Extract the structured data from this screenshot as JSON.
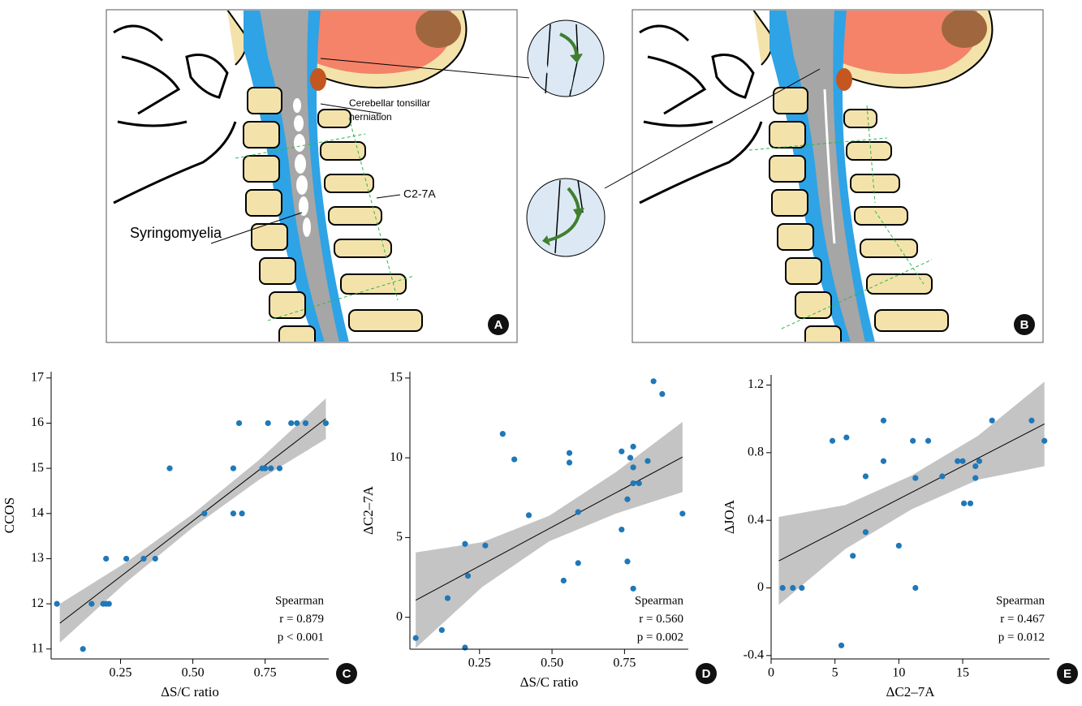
{
  "illustrations": {
    "panel_a": {
      "label": "A",
      "herniation": [
        "Cerebellar tonsillar",
        "herniation"
      ],
      "angle": "C2-7A",
      "syrinx": "Syringomyelia"
    },
    "panel_b": {
      "label": "B"
    }
  },
  "chart_data": [
    {
      "type": "scatter",
      "panel": "C",
      "x_label": "ΔS/C ratio",
      "y_label": "CCOS",
      "xlim": [
        0.01,
        0.97
      ],
      "ylim": [
        10.78,
        17.14
      ],
      "xticks": [
        0.25,
        {
          "value": 0.5,
          "label": "0.50"
        },
        0.75
      ],
      "yticks": [
        11,
        12,
        13,
        14,
        15,
        16,
        17
      ],
      "color": "#1f78b8",
      "band_color": "#c4c4c4",
      "x": [
        0.03,
        0.12,
        0.15,
        0.19,
        0.2,
        0.21,
        0.2,
        0.27,
        0.33,
        0.37,
        0.42,
        0.54,
        0.64,
        0.64,
        0.66,
        0.67,
        0.76,
        0.74,
        0.75,
        0.77,
        0.8,
        0.84,
        0.86,
        0.89,
        0.96
      ],
      "y": [
        12,
        11,
        12,
        12,
        12,
        12,
        13,
        13,
        13,
        13,
        15,
        14,
        15,
        14,
        16,
        14,
        16,
        15,
        15,
        15,
        15,
        16,
        16,
        16,
        16
      ],
      "fit": {
        "x": [
          0.04,
          0.96
        ],
        "y": [
          11.57,
          16.1
        ]
      },
      "band": {
        "x": [
          0.04,
          0.27,
          0.5,
          0.73,
          0.96
        ],
        "lower": [
          11.14,
          12.48,
          13.69,
          14.75,
          15.65
        ],
        "upper": [
          12.0,
          12.92,
          13.99,
          15.19,
          16.55
        ]
      },
      "annotations": [
        "Spearman",
        "r = 0.879",
        "p < 0.001"
      ]
    },
    {
      "type": "scatter",
      "panel": "D",
      "x_label": "ΔS/C ratio",
      "y_label": "ΔC2–7A",
      "xlim": [
        0.01,
        0.97
      ],
      "ylim": [
        -2.0,
        15.4
      ],
      "xticks": [
        0.25,
        {
          "value": 0.5,
          "label": "0.50"
        },
        0.75
      ],
      "yticks": [
        0,
        5,
        10,
        15
      ],
      "color": "#1f78b8",
      "band_color": "#c4c4c4",
      "x": [
        0.03,
        0.12,
        0.14,
        0.2,
        0.2,
        0.21,
        0.27,
        0.33,
        0.37,
        0.42,
        0.54,
        0.56,
        0.56,
        0.59,
        0.59,
        0.74,
        0.77,
        0.78,
        0.76,
        0.78,
        0.78,
        0.8,
        0.78,
        0.76,
        0.74,
        0.83,
        0.85,
        0.88,
        0.95
      ],
      "y": [
        -1.3,
        -0.8,
        1.2,
        -1.9,
        4.6,
        2.6,
        4.5,
        11.5,
        9.9,
        6.4,
        2.3,
        10.3,
        9.7,
        6.6,
        3.4,
        10.4,
        10.0,
        10.7,
        7.4,
        8.4,
        9.4,
        8.4,
        1.8,
        3.5,
        5.5,
        9.8,
        14.8,
        14.0,
        6.5
      ],
      "fit": {
        "x": [
          0.03,
          0.95
        ],
        "y": [
          1.07,
          10.05
        ]
      },
      "band": {
        "x": [
          0.03,
          0.26,
          0.49,
          0.72,
          0.95
        ],
        "lower": [
          -1.93,
          1.91,
          4.76,
          6.5,
          7.85
        ],
        "upper": [
          4.07,
          4.71,
          6.36,
          9.1,
          12.25
        ]
      },
      "annotations": [
        "Spearman",
        "r = 0.560",
        "p = 0.002"
      ]
    },
    {
      "type": "scatter",
      "panel": "E",
      "x_label": "ΔC2–7A",
      "y_label": "ΔJOA",
      "xlim": [
        0,
        21.8
      ],
      "ylim": [
        -0.42,
        1.26
      ],
      "xticks": [
        0,
        5,
        10,
        15
      ],
      "yticks": [
        -0.4,
        0,
        0.4,
        0.8,
        1.2
      ],
      "color": "#1f78b8",
      "band_color": "#c4c4c4",
      "x": [
        0.9,
        1.7,
        2.4,
        4.8,
        5.9,
        5.5,
        6.4,
        7.4,
        7.4,
        8.8,
        8.8,
        10.0,
        11.1,
        11.3,
        11.3,
        12.3,
        13.4,
        14.6,
        15.0,
        15.1,
        15.6,
        16.0,
        16.0,
        16.3,
        17.3,
        20.4,
        21.4
      ],
      "y": [
        0,
        0,
        0,
        0.87,
        0.89,
        -0.34,
        0.19,
        0.66,
        0.33,
        0.99,
        0.75,
        0.25,
        0.87,
        0.65,
        0,
        0.87,
        0.66,
        0.75,
        0.75,
        0.5,
        0.5,
        0.65,
        0.72,
        0.75,
        0.99,
        0.99,
        0.87
      ],
      "fit": {
        "x": [
          0.6,
          21.4
        ],
        "y": [
          0.16,
          0.97
        ]
      },
      "band": {
        "x": [
          0.6,
          5.8,
          11,
          16.2,
          21.4
        ],
        "lower": [
          -0.1,
          0.23,
          0.465,
          0.64,
          0.72
        ],
        "upper": [
          0.42,
          0.49,
          0.665,
          0.9,
          1.22
        ]
      },
      "annotations": [
        "Spearman",
        "r = 0.467",
        "p = 0.012"
      ]
    }
  ]
}
